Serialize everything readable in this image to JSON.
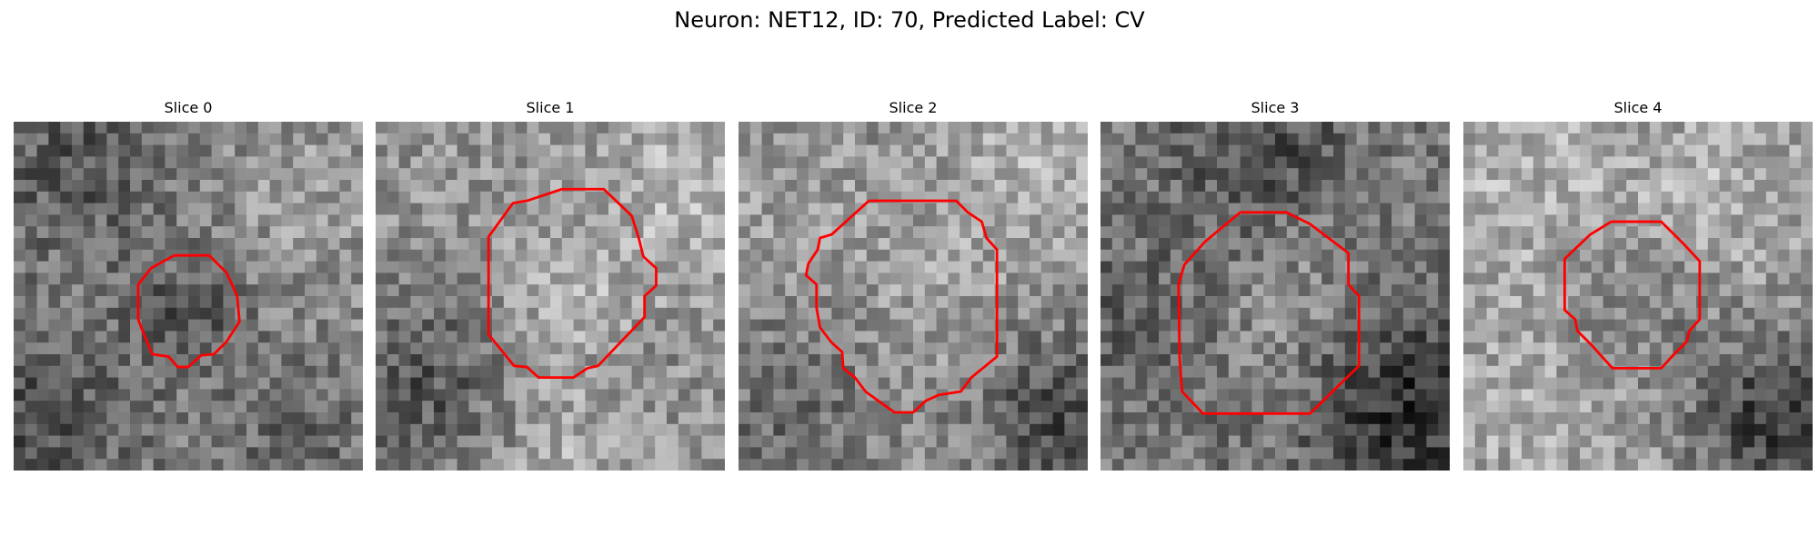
{
  "figure": {
    "title": "Neuron: NET12, ID: 70, Predicted Label: CV"
  },
  "panels": [
    {
      "title": "Slice 0"
    },
    {
      "title": "Slice 1"
    },
    {
      "title": "Slice 2"
    },
    {
      "title": "Slice 3"
    },
    {
      "title": "Slice 4"
    }
  ],
  "colors": {
    "background": "#ffffff",
    "contour": "#ff0000",
    "colormap": "gray"
  }
}
